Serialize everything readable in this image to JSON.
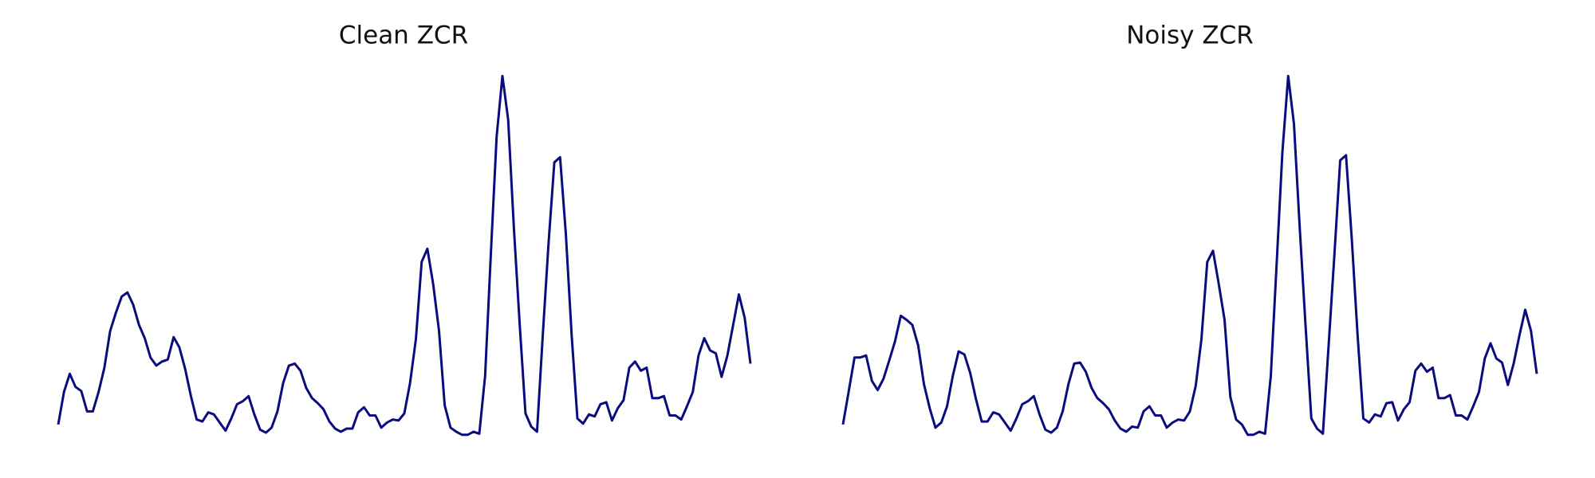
{
  "chart_data": [
    {
      "type": "line",
      "title": "Clean ZCR",
      "color": "#0b0b80",
      "ylim": [
        0,
        370
      ],
      "values": [
        22,
        54,
        72,
        59,
        55,
        35,
        35,
        54,
        78,
        114,
        132,
        148,
        152,
        140,
        120,
        107,
        88,
        80,
        84,
        86,
        108,
        98,
        77,
        50,
        27,
        25,
        34,
        32,
        24,
        16,
        28,
        42,
        45,
        50,
        32,
        17,
        14,
        19,
        35,
        63,
        80,
        82,
        75,
        58,
        48,
        43,
        37,
        25,
        18,
        15,
        18,
        18,
        34,
        39,
        31,
        31,
        19,
        24,
        27,
        26,
        33,
        63,
        106,
        182,
        195,
        160,
        115,
        41,
        19,
        15,
        12,
        12,
        15,
        13,
        70,
        190,
        305,
        365,
        322,
        215,
        120,
        33,
        20,
        15,
        110,
        200,
        280,
        285,
        210,
        110,
        28,
        23,
        32,
        30,
        42,
        44,
        26,
        38,
        46,
        78,
        84,
        75,
        78,
        48,
        48,
        50,
        31,
        31,
        27,
        40,
        54,
        90,
        107,
        95,
        92,
        69,
        90,
        120,
        150,
        127,
        82
      ]
    },
    {
      "type": "line",
      "title": "Noisy ZCR",
      "color": "#0b0b80",
      "ylim": [
        0,
        370
      ],
      "values": [
        22,
        55,
        88,
        88,
        90,
        65,
        56,
        67,
        85,
        104,
        129,
        125,
        120,
        100,
        62,
        38,
        19,
        24,
        40,
        70,
        94,
        91,
        73,
        47,
        25,
        25,
        34,
        32,
        24,
        16,
        28,
        42,
        45,
        50,
        32,
        17,
        14,
        19,
        35,
        62,
        82,
        83,
        74,
        58,
        48,
        43,
        37,
        26,
        18,
        15,
        20,
        19,
        35,
        40,
        31,
        31,
        19,
        24,
        27,
        26,
        35,
        60,
        106,
        182,
        193,
        160,
        125,
        49,
        27,
        22,
        12,
        12,
        15,
        13,
        70,
        180,
        290,
        365,
        318,
        215,
        120,
        28,
        18,
        13,
        100,
        190,
        282,
        287,
        205,
        110,
        28,
        24,
        32,
        30,
        43,
        44,
        26,
        37,
        44,
        75,
        82,
        74,
        78,
        48,
        48,
        51,
        31,
        31,
        27,
        40,
        54,
        87,
        102,
        87,
        83,
        61,
        82,
        110,
        135,
        114,
        72
      ]
    }
  ]
}
